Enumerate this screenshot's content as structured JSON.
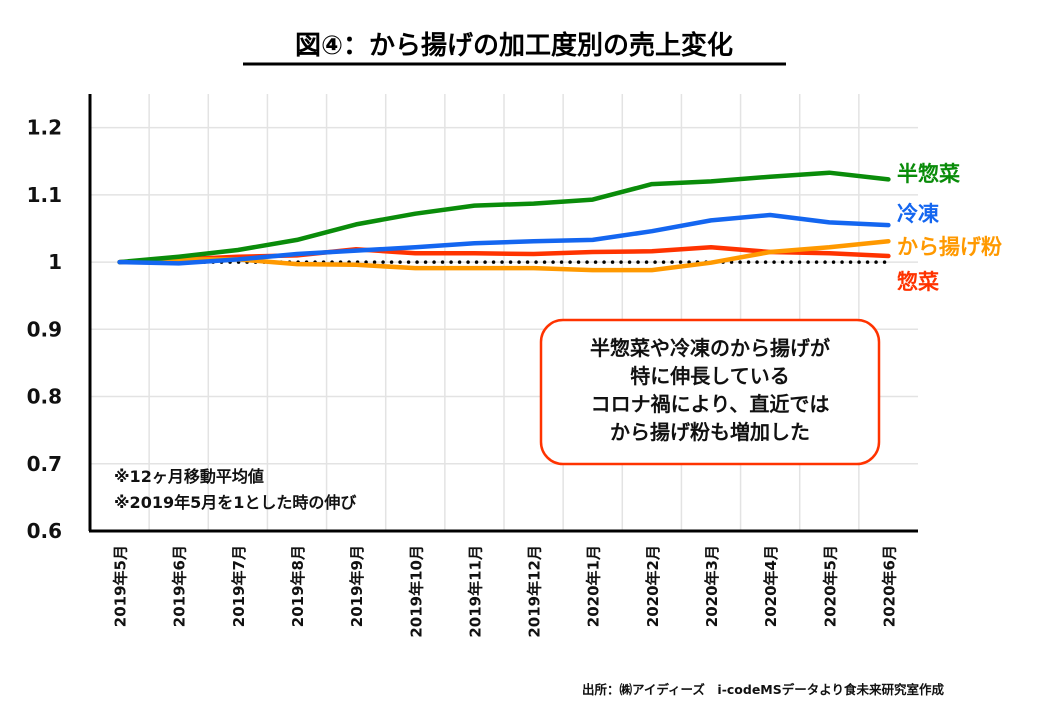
{
  "chart_data": {
    "type": "line",
    "title": "図④：から揚げの加工度別の売上変化",
    "xlabel": "",
    "ylabel": "",
    "ylim": [
      0.6,
      1.25
    ],
    "yticks": [
      0.6,
      0.7,
      0.8,
      0.9,
      1,
      1.1,
      1.2
    ],
    "ytick_labels": [
      "0.6",
      "0.7",
      "0.8",
      "0.9",
      "1",
      "1.1",
      "1.2"
    ],
    "grid": true,
    "legend_placement": "right (inline labels at line ends)",
    "categories": [
      "2019年5月",
      "2019年6月",
      "2019年7月",
      "2019年8月",
      "2019年9月",
      "2019年10月",
      "2019年11月",
      "2019年12月",
      "2020年1月",
      "2020年2月",
      "2020年3月",
      "2020年4月",
      "2020年5月",
      "2020年6月"
    ],
    "series": [
      {
        "name": "半惣菜",
        "color": "#0a8c0a",
        "values": [
          1.0,
          1.008,
          1.018,
          1.033,
          1.056,
          1.072,
          1.084,
          1.087,
          1.093,
          1.116,
          1.12,
          1.127,
          1.133,
          1.123
        ]
      },
      {
        "name": "冷凍",
        "color": "#1466f0",
        "values": [
          1.0,
          0.998,
          1.004,
          1.012,
          1.017,
          1.022,
          1.028,
          1.031,
          1.033,
          1.046,
          1.062,
          1.07,
          1.059,
          1.055
        ]
      },
      {
        "name": "から揚げ粉",
        "color": "#ff9900",
        "values": [
          1.0,
          1.004,
          1.004,
          0.997,
          0.996,
          0.991,
          0.991,
          0.991,
          0.988,
          0.988,
          0.999,
          1.015,
          1.022,
          1.031
        ]
      },
      {
        "name": "惣菜",
        "color": "#ff3300",
        "values": [
          1.0,
          1.004,
          1.008,
          1.01,
          1.019,
          1.013,
          1.013,
          1.012,
          1.015,
          1.016,
          1.022,
          1.015,
          1.013,
          1.009
        ]
      }
    ],
    "reference_line": {
      "value": 1,
      "style": "dotted",
      "color": "#000000"
    },
    "annotations": {
      "callout": {
        "lines": [
          "半惣菜や冷凍のから揚げが",
          "特に伸長している",
          "コロナ禍により、直近では",
          "から揚げ粉も増加した"
        ],
        "border_color": "#ff3300"
      },
      "notes": [
        "※12ヶ月移動平均値",
        "※2019年5月を1とした時の伸び"
      ],
      "source": "出所：㈱アイディーズ　i-codeMSデータより食未来研究室作成"
    }
  }
}
